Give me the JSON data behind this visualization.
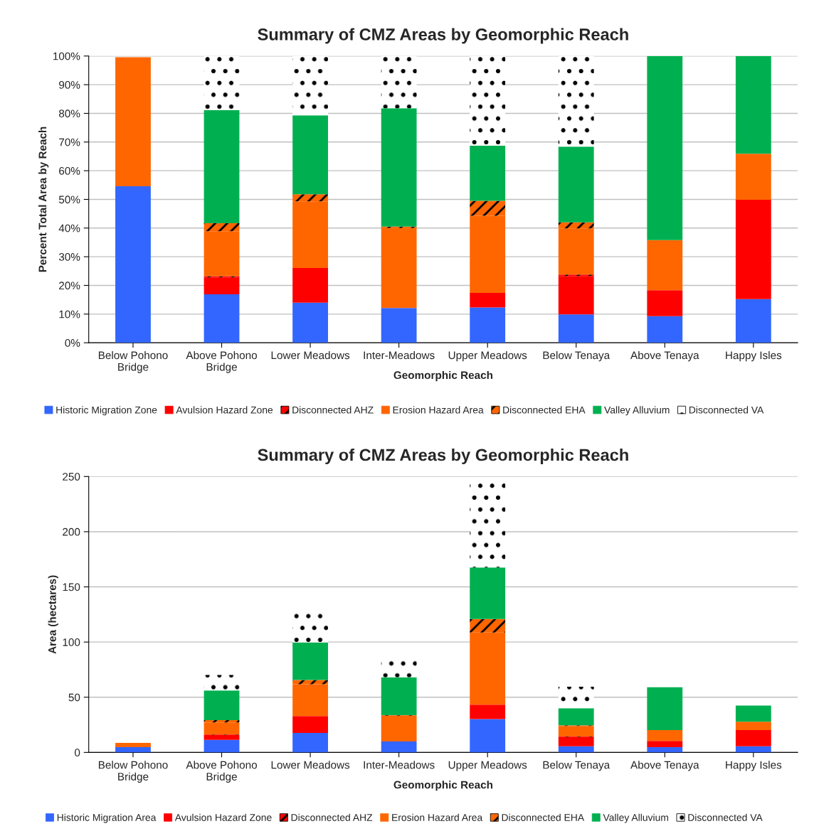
{
  "chart_data": [
    {
      "type": "bar",
      "stacked": true,
      "title": "Summary of CMZ Areas by Geomorphic Reach",
      "xlabel": "Geomorphic Reach",
      "ylabel": "Percent Total Area by Reach",
      "categories": [
        "Below Pohono\nBridge",
        "Above Pohono\nBridge",
        "Lower Meadows",
        "Inter-Meadows",
        "Upper Meadows",
        "Below Tenaya",
        "Above Tenaya",
        "Happy Isles"
      ],
      "ylim": [
        0,
        100
      ],
      "yticks": [
        {
          "value": 0,
          "label": "0%"
        },
        {
          "value": 10,
          "label": "10%"
        },
        {
          "value": 20,
          "label": "20%"
        },
        {
          "value": 30,
          "label": "30%"
        },
        {
          "value": 40,
          "label": "40%"
        },
        {
          "value": 50,
          "label": "50%"
        },
        {
          "value": 60,
          "label": "60%"
        },
        {
          "value": 70,
          "label": "70%"
        },
        {
          "value": 80,
          "label": "80%"
        },
        {
          "value": 90,
          "label": "90%"
        },
        {
          "value": 100,
          "label": "100%"
        }
      ],
      "grid": "y",
      "legend": "bottom",
      "series": [
        {
          "name": "Historic Migration Zone",
          "color": "#3366ff",
          "values": [
            54.6,
            16.9,
            14.0,
            12.1,
            12.3,
            9.9,
            9.3,
            15.2
          ]
        },
        {
          "name": "Avulsion Hazard Zone",
          "color": "#ff0000",
          "values": [
            null,
            5.9,
            12.1,
            null,
            5.1,
            13.4,
            9.0,
            34.7
          ]
        },
        {
          "name": "Disconnected AHZ",
          "color": "#ff0000",
          "values": [
            null,
            0.4,
            null,
            null,
            null,
            0.5,
            null,
            null
          ]
        },
        {
          "name": "Erosion Hazard Area",
          "color": "#ff6600",
          "values": [
            45.0,
            15.7,
            23.2,
            27.9,
            26.9,
            16.1,
            17.5,
            16.0
          ]
        },
        {
          "name": "Disconnected EHA",
          "color": "#ff6600",
          "values": [
            null,
            2.8,
            2.5,
            0.5,
            5.2,
            2.1,
            null,
            null
          ]
        },
        {
          "name": "Valley Alluvium",
          "color": "#00b050",
          "values": [
            null,
            39.4,
            27.5,
            41.3,
            19.2,
            26.4,
            64.2,
            34.1
          ]
        },
        {
          "name": "Disconnected VA",
          "color": "#ffffff",
          "values": [
            null,
            18.9,
            20.7,
            18.2,
            31.3,
            31.6,
            null,
            null
          ]
        }
      ]
    },
    {
      "type": "bar",
      "stacked": true,
      "title": "Summary of CMZ Areas by Geomorphic Reach",
      "xlabel": "Geomorphic Reach",
      "ylabel": "Area (hectares)",
      "categories": [
        "Below Pohono\nBridge",
        "Above Pohono\nBridge",
        "Lower Meadows",
        "Inter-Meadows",
        "Upper Meadows",
        "Below Tenaya",
        "Above Tenaya",
        "Happy Isles"
      ],
      "ylim": [
        0,
        250
      ],
      "yticks": [
        0,
        50,
        100,
        150,
        200,
        250
      ],
      "grid": "y",
      "legend": "bottom",
      "series": [
        {
          "name": "Historic Migration Area",
          "color": "#3366ff",
          "values": [
            4.8,
            11.3,
            17.6,
            10.0,
            30.2,
            5.5,
            4.8,
            5.5
          ]
        },
        {
          "name": "Avulsion Hazard Zone",
          "color": "#ff0000",
          "values": [
            null,
            4.4,
            15.4,
            null,
            13.0,
            8.4,
            5.6,
            14.8
          ]
        },
        {
          "name": "Disconnected AHZ",
          "color": "#ff0000",
          "values": [
            null,
            0.5,
            null,
            null,
            null,
            0.5,
            null,
            null
          ]
        },
        {
          "name": "Erosion Hazard Area",
          "color": "#ff6600",
          "values": [
            3.9,
            11.0,
            28.7,
            23.3,
            65.4,
            9.6,
            9.9,
            7.5
          ]
        },
        {
          "name": "Disconnected EHA",
          "color": "#ff6600",
          "values": [
            null,
            2.1,
            4.0,
            0.5,
            12.3,
            0.5,
            null,
            null
          ]
        },
        {
          "name": "Valley Alluvium",
          "color": "#00b050",
          "values": [
            null,
            26.8,
            33.9,
            34.2,
            46.7,
            15.6,
            38.7,
            14.7
          ]
        },
        {
          "name": "Disconnected VA",
          "color": "#ffffff",
          "values": [
            null,
            14.1,
            26.7,
            15.7,
            76.9,
            19.4,
            null,
            null
          ]
        }
      ]
    }
  ]
}
